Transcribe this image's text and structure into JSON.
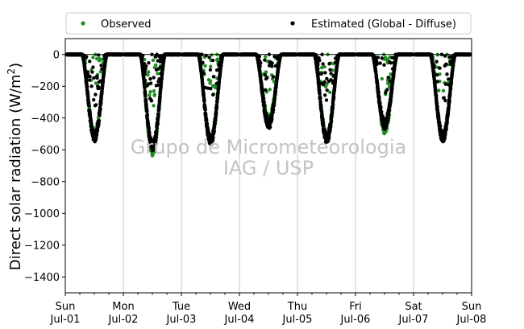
{
  "chart_data": {
    "type": "scatter",
    "ylabel_main": "Direct solar radiation (W/m",
    "ylabel_sup": "2",
    "ylabel_close": ")",
    "ylim": [
      -1500,
      100
    ],
    "yticks": [
      0,
      -200,
      -400,
      -600,
      -800,
      -1000,
      -1200,
      -1400
    ],
    "xlim": [
      "2017-07-01",
      "2017-07-08"
    ],
    "xticks": [
      {
        "day": "Sun",
        "date": "Jul-01"
      },
      {
        "day": "Mon",
        "date": "Jul-02"
      },
      {
        "day": "Tue",
        "date": "Jul-03"
      },
      {
        "day": "Wed",
        "date": "Jul-04"
      },
      {
        "day": "Thu",
        "date": "Jul-05"
      },
      {
        "day": "Fri",
        "date": "Jul-06"
      },
      {
        "day": "Sat",
        "date": "Jul-07"
      },
      {
        "day": "Sun",
        "date": "Jul-08"
      }
    ],
    "grid": "vertical",
    "zero_line": true,
    "legend_position": "top",
    "watermark": [
      "Grupo de Micrometeorologia",
      "IAG / USP"
    ],
    "series": [
      {
        "name": "Observed",
        "color": "#228b22",
        "daily_minimum": [
          {
            "date": "Jul-01",
            "value": -500
          },
          {
            "date": "Jul-02",
            "value": -610
          },
          {
            "date": "Jul-03",
            "value": -540
          },
          {
            "date": "Jul-04",
            "value": -410
          },
          {
            "date": "Jul-05",
            "value": -520
          },
          {
            "date": "Jul-06",
            "value": -470
          },
          {
            "date": "Jul-07",
            "value": -520
          }
        ]
      },
      {
        "name": "Estimated (Global - Diffuse)",
        "color": "#000000",
        "daily_minimum": [
          {
            "date": "Jul-01",
            "value": -520
          },
          {
            "date": "Jul-02",
            "value": -580
          },
          {
            "date": "Jul-03",
            "value": -540
          },
          {
            "date": "Jul-04",
            "value": -440
          },
          {
            "date": "Jul-05",
            "value": -530
          },
          {
            "date": "Jul-06",
            "value": -440
          },
          {
            "date": "Jul-07",
            "value": -520
          }
        ]
      }
    ]
  }
}
